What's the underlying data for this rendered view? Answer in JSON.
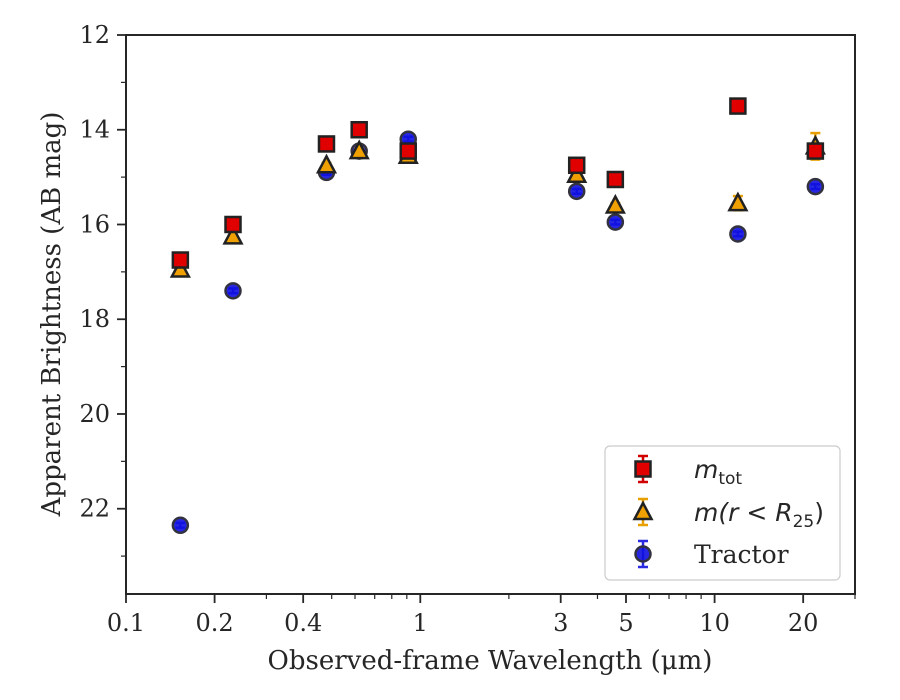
{
  "chart_data": {
    "type": "scatter",
    "xlabel": "Observed-frame Wavelength (μm)",
    "ylabel": "Apparent Brightness (AB mag)",
    "xscale": "log",
    "xlim": [
      0.1,
      30
    ],
    "ylim": [
      23.8,
      12
    ],
    "y_inverted": true,
    "grid": false,
    "legend_position": "lower-right",
    "x_ticks": [
      {
        "value": 0.1,
        "label": "0.1"
      },
      {
        "value": 0.2,
        "label": "0.2"
      },
      {
        "value": 0.4,
        "label": "0.4"
      },
      {
        "value": 1,
        "label": "1"
      },
      {
        "value": 3,
        "label": "3"
      },
      {
        "value": 5,
        "label": "5"
      },
      {
        "value": 10,
        "label": "10"
      },
      {
        "value": 20,
        "label": "20"
      }
    ],
    "x_minor_ticks": [
      0.3,
      0.5,
      0.6,
      0.7,
      0.8,
      0.9,
      2,
      4,
      6,
      7,
      8,
      9,
      30
    ],
    "y_ticks": [
      {
        "value": 12,
        "label": "12"
      },
      {
        "value": 14,
        "label": "14"
      },
      {
        "value": 16,
        "label": "16"
      },
      {
        "value": 18,
        "label": "18"
      },
      {
        "value": 20,
        "label": "20"
      },
      {
        "value": 22,
        "label": "22"
      }
    ],
    "y_minor_ticks": [
      13,
      15,
      17,
      19,
      21,
      23
    ],
    "series": [
      {
        "name_base": "m",
        "name_sub": "tot",
        "marker": "square",
        "color": "#e00000",
        "error_color": "#d00000",
        "points": [
          {
            "x": 0.153,
            "y": 16.75,
            "err": 0.12
          },
          {
            "x": 0.231,
            "y": 16.0,
            "err": 0.1
          },
          {
            "x": 0.48,
            "y": 14.3,
            "err": 0.05
          },
          {
            "x": 0.62,
            "y": 14.0,
            "err": 0.05
          },
          {
            "x": 0.91,
            "y": 14.45,
            "err": 0.05
          },
          {
            "x": 3.4,
            "y": 14.75,
            "err": 0.05
          },
          {
            "x": 4.6,
            "y": 15.05,
            "err": 0.05
          },
          {
            "x": 12.0,
            "y": 13.5,
            "err": 0.05
          },
          {
            "x": 22.0,
            "y": 14.45,
            "err": 0.15
          }
        ]
      },
      {
        "name_prefix": "m(r < R",
        "name_sub": "25",
        "name_suffix": ")",
        "marker": "triangle",
        "color": "#f0a000",
        "error_color": "#e8a000",
        "points": [
          {
            "x": 0.153,
            "y": 16.95,
            "err": 0.1
          },
          {
            "x": 0.231,
            "y": 16.25,
            "err": 0.1
          },
          {
            "x": 0.48,
            "y": 14.75,
            "err": 0.05
          },
          {
            "x": 0.62,
            "y": 14.45,
            "err": 0.05
          },
          {
            "x": 0.91,
            "y": 14.55,
            "err": 0.05
          },
          {
            "x": 3.4,
            "y": 14.95,
            "err": 0.05
          },
          {
            "x": 4.6,
            "y": 15.6,
            "err": 0.05
          },
          {
            "x": 12.0,
            "y": 15.55,
            "err": 0.15
          },
          {
            "x": 22.0,
            "y": 14.35,
            "err": 0.28
          }
        ]
      },
      {
        "name": "Tractor",
        "marker": "circle",
        "color": "#1010e0",
        "error_color": "#2a2ae0",
        "points": [
          {
            "x": 0.153,
            "y": 22.35,
            "err": 0.05
          },
          {
            "x": 0.231,
            "y": 17.4,
            "err": 0.05
          },
          {
            "x": 0.48,
            "y": 14.9,
            "err": 0.05
          },
          {
            "x": 0.62,
            "y": 14.45,
            "err": 0.05
          },
          {
            "x": 0.91,
            "y": 14.2,
            "err": 0.05
          },
          {
            "x": 3.4,
            "y": 15.3,
            "err": 0.05
          },
          {
            "x": 4.6,
            "y": 15.95,
            "err": 0.05
          },
          {
            "x": 12.0,
            "y": 16.2,
            "err": 0.05
          },
          {
            "x": 22.0,
            "y": 15.2,
            "err": 0.05
          }
        ]
      }
    ]
  }
}
